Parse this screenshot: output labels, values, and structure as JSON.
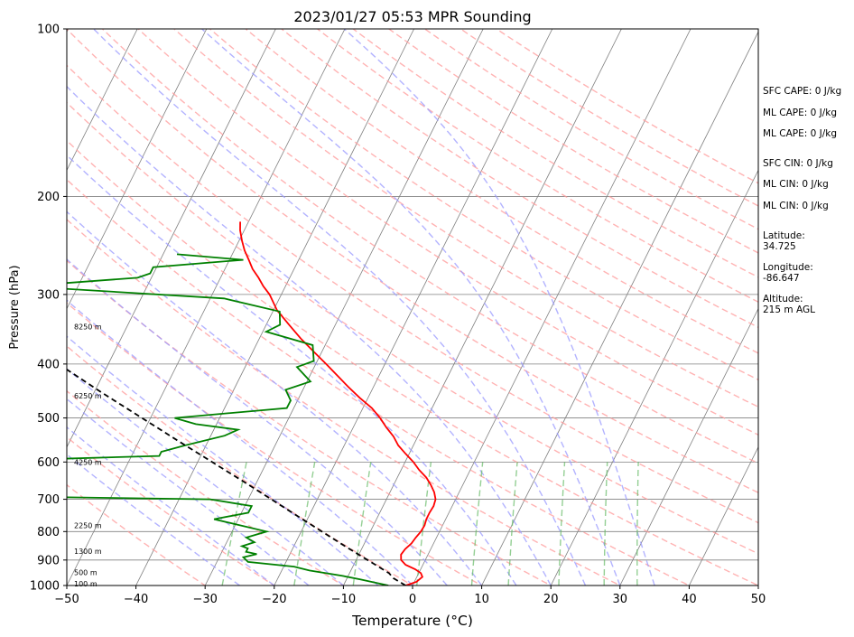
{
  "chart_data": {
    "type": "line",
    "title": "2023/01/27 05:53 MPR Sounding",
    "xlabel": "Temperature (°C)",
    "ylabel": "Pressure (hPa)",
    "xlim": [
      -50,
      50
    ],
    "ylim": [
      1000,
      100
    ],
    "yscale": "log",
    "skew": true,
    "grid": true,
    "x_ticks": [
      -50,
      -40,
      -30,
      -20,
      -10,
      0,
      10,
      20,
      30,
      40,
      50
    ],
    "y_ticks": [
      100,
      200,
      300,
      400,
      500,
      600,
      700,
      800,
      900,
      1000
    ],
    "series": [
      {
        "name": "",
        "role": "temperature",
        "color": "#ff0000",
        "points": [
          [
            -1.0,
            1000
          ],
          [
            0.3,
            985
          ],
          [
            0.8,
            965
          ],
          [
            0.3,
            950
          ],
          [
            -0.8,
            935
          ],
          [
            -2.5,
            918
          ],
          [
            -3.5,
            900
          ],
          [
            -3.9,
            880
          ],
          [
            -3.7,
            860
          ],
          [
            -3.2,
            840
          ],
          [
            -3.0,
            820
          ],
          [
            -2.7,
            800
          ],
          [
            -2.6,
            780
          ],
          [
            -2.8,
            760
          ],
          [
            -2.8,
            740
          ],
          [
            -2.7,
            720
          ],
          [
            -2.9,
            700
          ],
          [
            -3.6,
            680
          ],
          [
            -4.6,
            660
          ],
          [
            -5.8,
            640
          ],
          [
            -7.4,
            620
          ],
          [
            -8.8,
            600
          ],
          [
            -10.5,
            580
          ],
          [
            -12.2,
            560
          ],
          [
            -13.5,
            540
          ],
          [
            -15.2,
            520
          ],
          [
            -16.8,
            500
          ],
          [
            -18.7,
            480
          ],
          [
            -21.2,
            460
          ],
          [
            -23.6,
            440
          ],
          [
            -26.0,
            420
          ],
          [
            -28.5,
            400
          ],
          [
            -31.2,
            380
          ],
          [
            -34.0,
            360
          ],
          [
            -36.7,
            340
          ],
          [
            -39.5,
            320
          ],
          [
            -41.7,
            300
          ],
          [
            -43.2,
            290
          ],
          [
            -44.5,
            280
          ],
          [
            -46.0,
            270
          ],
          [
            -47.2,
            260
          ],
          [
            -48.5,
            250
          ],
          [
            -49.6,
            240
          ],
          [
            -50.6,
            230
          ],
          [
            -51.2,
            222
          ]
        ]
      },
      {
        "name": "",
        "role": "dewpoint",
        "color": "#008000",
        "points": [
          [
            -3.5,
            1000
          ],
          [
            -8.0,
            975
          ],
          [
            -11.0,
            960
          ],
          [
            -16.0,
            940
          ],
          [
            -18.5,
            925
          ],
          [
            -25.5,
            907
          ],
          [
            -26.5,
            890
          ],
          [
            -24.8,
            878
          ],
          [
            -26.5,
            870
          ],
          [
            -26.5,
            858
          ],
          [
            -27.5,
            850
          ],
          [
            -26.0,
            836
          ],
          [
            -27.5,
            820
          ],
          [
            -25.0,
            800
          ],
          [
            -33.5,
            760
          ],
          [
            -29.0,
            740
          ],
          [
            -29.0,
            720
          ],
          [
            -35.5,
            700
          ],
          [
            -72.0,
            690
          ],
          [
            -66.0,
            595
          ],
          [
            -46.0,
            585
          ],
          [
            -46.0,
            575
          ],
          [
            -43.0,
            560
          ],
          [
            -38.0,
            538
          ],
          [
            -36.5,
            525
          ],
          [
            -43.0,
            513
          ],
          [
            -46.5,
            500
          ],
          [
            -31.0,
            480
          ],
          [
            -31.0,
            465
          ],
          [
            -32.5,
            445
          ],
          [
            -29.5,
            430
          ],
          [
            -32.5,
            405
          ],
          [
            -30.5,
            395
          ],
          [
            -31.8,
            370
          ],
          [
            -39.5,
            350
          ],
          [
            -38.0,
            340
          ],
          [
            -39.0,
            322
          ],
          [
            -48.0,
            305
          ],
          [
            -78.0,
            290
          ],
          [
            -62.0,
            280
          ],
          [
            -60.5,
            275
          ],
          [
            -60.5,
            268
          ],
          [
            -48.0,
            260
          ],
          [
            -58.0,
            254
          ]
        ]
      },
      {
        "name": "",
        "role": "parcel",
        "color": "#000000",
        "dashed": true,
        "points": [
          [
            -1.0,
            1000
          ],
          [
            -3.3,
            970
          ],
          [
            -4.3,
            950
          ],
          [
            -12.6,
            850
          ],
          [
            -21.7,
            750
          ],
          [
            -32.0,
            650
          ],
          [
            -44.3,
            550
          ],
          [
            -58.9,
            450
          ],
          [
            -76.6,
            350
          ],
          [
            -81.0,
            330
          ],
          [
            -86.0,
            310
          ],
          [
            -87.3,
            304
          ]
        ]
      }
    ],
    "height_labels": [
      "100 m",
      "500 m",
      "1300 m",
      "2250 m",
      "4250 m",
      "6250 m",
      "8250 m"
    ],
    "height_label_pressures": [
      993,
      948,
      868,
      780,
      600,
      456,
      343
    ],
    "dry_adiabats_theta_C": [
      -30,
      -20,
      -10,
      0,
      10,
      20,
      30,
      40,
      50,
      60,
      70,
      80,
      90,
      100,
      110,
      120,
      130,
      140,
      150,
      160,
      170,
      180,
      190,
      200
    ],
    "moist_adiabats_T1000_C": [
      -25,
      -20,
      -15,
      -10,
      -5,
      0,
      5,
      10,
      15,
      20,
      25,
      30,
      35
    ],
    "mixing_ratios_g_kg": [
      0.4,
      1,
      2,
      4,
      7,
      10,
      16,
      24,
      32
    ],
    "colors": {
      "temperature": "#ff0000",
      "dewpoint": "#008000",
      "parcel": "#000000",
      "isotherm": "#808080",
      "dry_adiabat": "#ff9999",
      "moist_adiabat": "#9999ff",
      "mixing_ratio": "#66bb66"
    }
  },
  "info": {
    "sfc_cape": "SFC CAPE: 0 J/kg",
    "ml_cape_1": "ML CAPE: 0 J/kg",
    "ml_cape_2": "ML CAPE: 0 J/kg",
    "sfc_cin": "SFC CIN: 0 J/kg",
    "ml_cin_1": "ML CIN: 0 J/kg",
    "ml_cin_2": "ML CIN: 0 J/kg",
    "latitude_label": "Latitude:",
    "latitude_value": "34.725",
    "longitude_label": "Longitude:",
    "longitude_value": "-86.647",
    "altitude_label": "Altitude:",
    "altitude_value": "215 m AGL"
  }
}
